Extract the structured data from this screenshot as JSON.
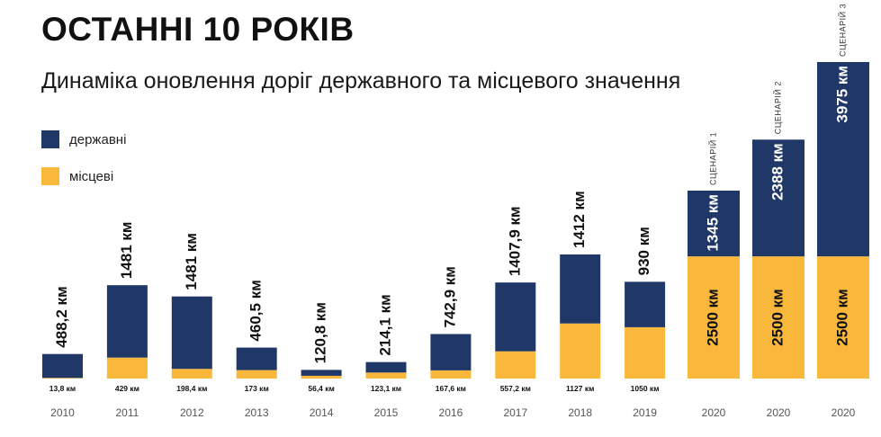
{
  "chart_data": {
    "type": "bar",
    "stacked": true,
    "title": "ОСТАННІ 10 РОКІВ",
    "subtitle": "Динаміка оновлення доріг державного та місцевого значення",
    "categories": [
      "2010",
      "2011",
      "2012",
      "2013",
      "2014",
      "2015",
      "2016",
      "2017",
      "2018",
      "2019",
      "2020",
      "2020",
      "2020"
    ],
    "scenario_labels": [
      "",
      "",
      "",
      "",
      "",
      "",
      "",
      "",
      "",
      "",
      "СЦЕНАРІЙ 1",
      "СЦЕНАРІЙ 2",
      "СЦЕНАРІЙ 3"
    ],
    "series": [
      {
        "name": "місцеві",
        "color": "#F9B83C",
        "values": [
          13.8,
          429,
          198.4,
          173,
          56.4,
          123.1,
          167.6,
          557.2,
          1127,
          1050,
          2500,
          2500,
          2500
        ],
        "labels": [
          "13,8 км",
          "429 км",
          "198,4 км",
          "173 км",
          "56,4 км",
          "123,1 км",
          "167,6 км",
          "557,2 км",
          "1127 км",
          "1050 км",
          "2500 км",
          "2500 км",
          "2500 км"
        ]
      },
      {
        "name": "державні",
        "color": "#1F3868",
        "values": [
          488.2,
          1481,
          1481,
          460.5,
          120.8,
          214.1,
          742.9,
          1407.9,
          1412,
          930,
          1345,
          2388,
          3975
        ],
        "labels": [
          "488,2 км",
          "1481 км",
          "1481 км",
          "460,5 км",
          "120,8 км",
          "214,1 км",
          "742,9 км",
          "1407,9 км",
          "1412 км",
          "930 км",
          "1345 км",
          "2388 км",
          "3975 км"
        ]
      }
    ],
    "ylim": [
      0,
      6475
    ],
    "grid": false,
    "legend_position": "top-left"
  }
}
